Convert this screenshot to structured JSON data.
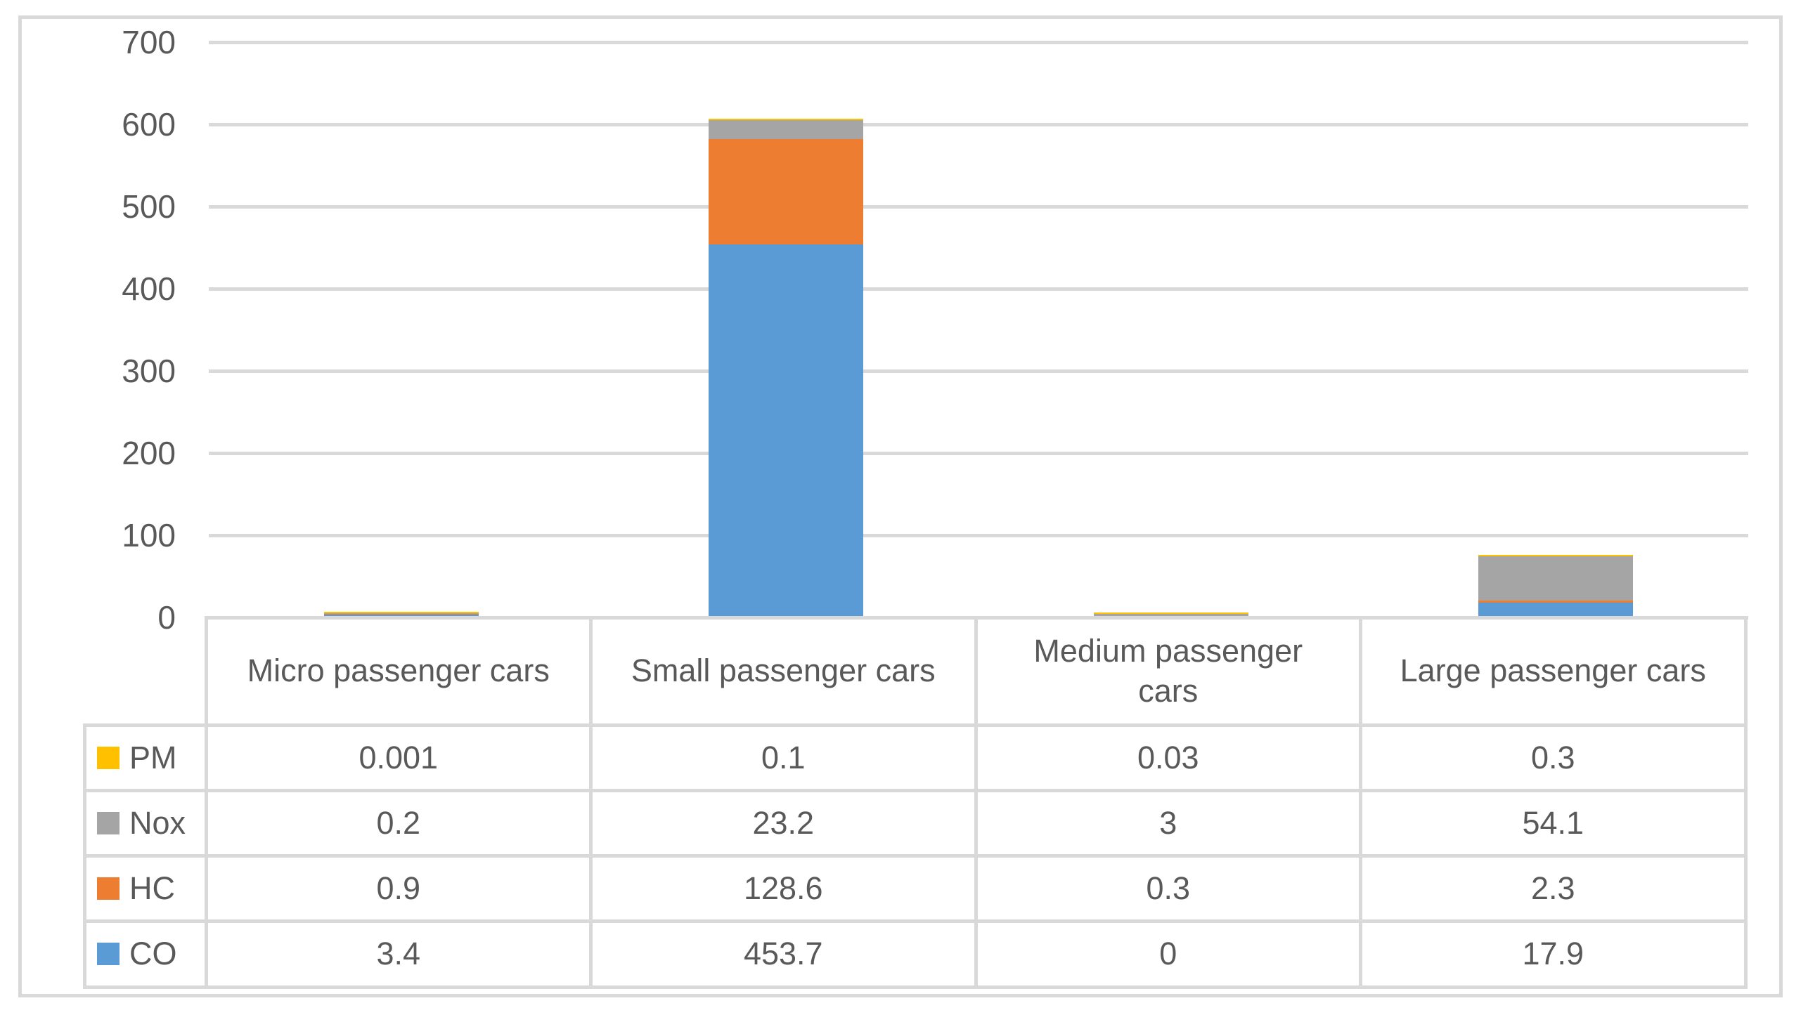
{
  "chart_data": {
    "type": "bar",
    "stacked": true,
    "title": "",
    "xlabel": "",
    "ylabel": "",
    "categories": [
      "Micro passenger cars",
      "Small passenger cars",
      "Medium passenger cars",
      "Large passenger cars"
    ],
    "series": [
      {
        "name": "PM",
        "color": "#FFC000",
        "values": [
          0.001,
          0.1,
          0.03,
          0.3
        ]
      },
      {
        "name": "Nox",
        "color": "#A5A5A5",
        "values": [
          0.2,
          23.2,
          3,
          54.1
        ]
      },
      {
        "name": "HC",
        "color": "#ED7D31",
        "values": [
          0.9,
          128.6,
          0.3,
          2.3
        ]
      },
      {
        "name": "CO",
        "color": "#5B9BD5",
        "values": [
          3.4,
          453.7,
          0,
          17.9
        ]
      }
    ],
    "stack_order_bottom_to_top": [
      "CO",
      "HC",
      "Nox",
      "PM"
    ],
    "y_ticks": [
      0,
      100,
      200,
      300,
      400,
      500,
      600,
      700
    ],
    "ylim": [
      0,
      700
    ],
    "grid": true,
    "legend_position": "data-table-left-column",
    "data_table_shown": true
  },
  "colors": {
    "gridline": "#D9D9D9",
    "frame_border": "#D9D9D9",
    "table_border": "#D9D9D9",
    "text": "#595959",
    "background": "#FFFFFF"
  }
}
